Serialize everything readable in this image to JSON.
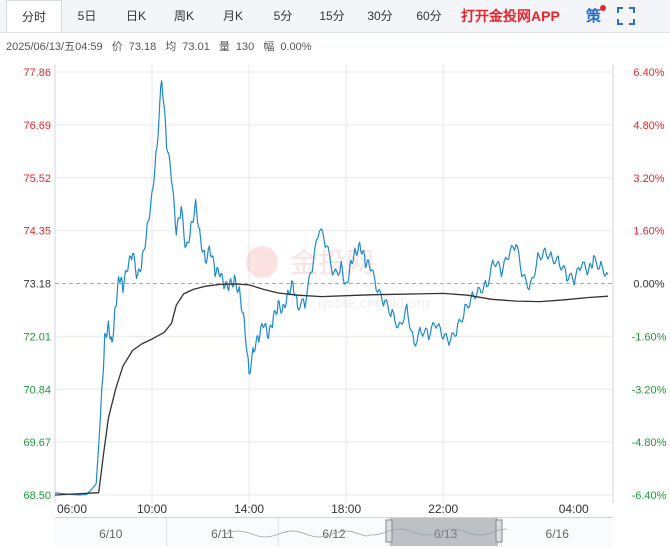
{
  "toolbar": {
    "tabs": [
      {
        "label": "分时",
        "active": true
      },
      {
        "label": "5日"
      },
      {
        "label": "日K"
      },
      {
        "label": "周K"
      },
      {
        "label": "月K"
      },
      {
        "label": "5分"
      },
      {
        "label": "15分"
      },
      {
        "label": "30分"
      },
      {
        "label": "60分"
      }
    ],
    "app_link": "打开金投网APP",
    "strategy": "策",
    "fullscreen_icon": "fullscreen-icon"
  },
  "info": {
    "date": "2025/06/13/五04:59",
    "price_label": "价",
    "price": "73.18",
    "avg_label": "均",
    "avg": "73.01",
    "vol_label": "量",
    "vol": "130",
    "pct_label": "幅",
    "pct": "0.00%"
  },
  "watermark": {
    "cn": "金投网",
    "url": "quote.cngold.org"
  },
  "colors": {
    "up": "#e8242c",
    "down": "#1a9a38",
    "price_line": "#1f8ac8",
    "avg_line": "#333333",
    "grid": "#e6e9ee"
  },
  "chart_data": {
    "type": "line",
    "ylim": [
      68.5,
      77.86
    ],
    "base": 73.18,
    "y_ticks_left": [
      "77.86",
      "76.69",
      "75.52",
      "74.35",
      "73.18",
      "72.01",
      "70.84",
      "69.67",
      "68.50"
    ],
    "y_ticks_right": [
      "6.40%",
      "4.80%",
      "3.20%",
      "1.60%",
      "0.00%",
      "-1.60%",
      "-3.20%",
      "-4.80%",
      "-6.40%"
    ],
    "x_ticks": [
      "06:00",
      "10:00",
      "14:00",
      "18:00",
      "22:00",
      "04:00"
    ],
    "x_tick_hours": [
      0,
      4,
      8,
      12,
      16,
      22
    ],
    "x_range_hours": [
      0,
      23
    ],
    "series": [
      {
        "key": "price",
        "x": [
          0,
          0.5,
          1,
          1.3,
          1.5,
          1.7,
          1.9,
          2.05,
          2.2,
          2.35,
          2.5,
          2.65,
          2.8,
          3.0,
          3.2,
          3.4,
          3.6,
          3.8,
          4.0,
          4.2,
          4.4,
          4.6,
          4.8,
          5.0,
          5.2,
          5.4,
          5.6,
          5.8,
          6.0,
          6.2,
          6.4,
          6.6,
          6.8,
          7.0,
          7.2,
          7.4,
          7.6,
          7.8,
          8.0,
          8.2,
          8.4,
          8.6,
          8.8,
          9.0,
          9.2,
          9.4,
          9.6,
          9.8,
          10.0,
          10.3,
          10.6,
          10.9,
          11.2,
          11.5,
          11.8,
          12.0,
          12.2,
          12.4,
          12.6,
          12.8,
          13.0,
          13.3,
          13.6,
          13.9,
          14.2,
          14.5,
          14.8,
          15.1,
          15.4,
          15.7,
          16.0,
          16.3,
          16.6,
          16.9,
          17.2,
          17.5,
          17.8,
          18.1,
          18.4,
          18.7,
          19.0,
          19.3,
          19.6,
          19.9,
          20.2,
          20.5,
          20.8,
          21.1,
          21.4,
          21.7,
          22.0,
          22.2,
          22.5,
          22.8
        ],
        "values": [
          68.55,
          68.52,
          68.5,
          68.51,
          68.62,
          68.75,
          70.45,
          71.95,
          72.25,
          71.85,
          72.7,
          73.35,
          73.1,
          73.55,
          73.85,
          73.3,
          73.7,
          74.4,
          75.15,
          76.2,
          77.75,
          76.3,
          75.55,
          74.3,
          74.85,
          73.9,
          74.4,
          74.95,
          74.15,
          73.7,
          73.95,
          73.45,
          73.4,
          73.1,
          73.15,
          73.25,
          73.0,
          72.35,
          71.2,
          71.75,
          72.0,
          72.3,
          72.0,
          72.4,
          72.7,
          72.6,
          72.95,
          73.2,
          72.7,
          72.75,
          73.55,
          74.4,
          74.0,
          73.35,
          73.55,
          73.1,
          73.65,
          73.9,
          74.0,
          73.65,
          73.55,
          73.0,
          72.75,
          72.5,
          72.2,
          72.65,
          71.85,
          72.15,
          72.05,
          72.3,
          72.0,
          71.9,
          72.2,
          72.6,
          72.9,
          73.05,
          73.15,
          73.7,
          73.45,
          73.8,
          74.05,
          73.3,
          73.1,
          73.75,
          73.9,
          73.75,
          73.65,
          73.35,
          73.25,
          73.6,
          73.45,
          73.7,
          73.55,
          73.38
        ]
      },
      {
        "key": "avg",
        "x": [
          0,
          1.8,
          2.0,
          2.2,
          2.5,
          2.8,
          3.2,
          3.6,
          4.0,
          4.5,
          4.8,
          5.0,
          5.3,
          5.7,
          6.2,
          6.8,
          7.4,
          8.0,
          8.6,
          9.2,
          10.0,
          11.0,
          12.0,
          13.0,
          14.0,
          15.0,
          16.0,
          17.0,
          18.0,
          19.0,
          20.0,
          21.0,
          22.0,
          22.8
        ],
        "values": [
          68.5,
          68.55,
          69.4,
          70.2,
          70.85,
          71.35,
          71.7,
          71.85,
          71.95,
          72.1,
          72.3,
          72.7,
          72.95,
          73.05,
          73.12,
          73.16,
          73.17,
          73.15,
          73.05,
          72.97,
          72.92,
          72.89,
          72.91,
          72.93,
          72.94,
          72.95,
          72.96,
          72.92,
          72.83,
          72.79,
          72.78,
          72.82,
          72.87,
          72.9
        ]
      }
    ]
  },
  "navigator": {
    "labels": [
      "6/10",
      "6/11",
      "6/12",
      "6/13",
      "6/16"
    ]
  }
}
